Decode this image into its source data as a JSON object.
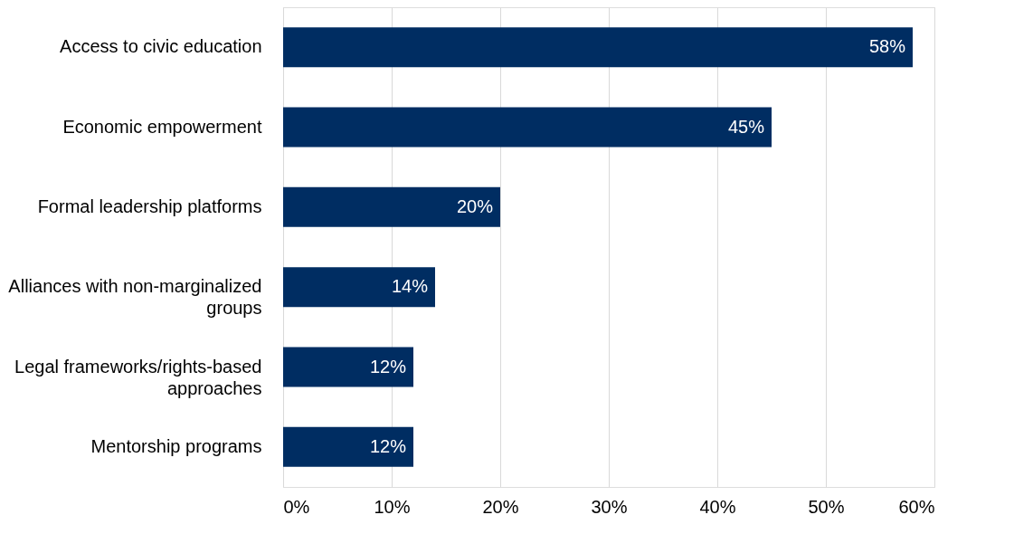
{
  "chart_data": {
    "type": "bar",
    "orientation": "horizontal",
    "categories": [
      "Access to civic education",
      "Economic empowerment",
      "Formal leadership platforms",
      "Alliances with non-marginalized groups",
      "Legal frameworks/rights-based approaches",
      "Mentorship programs"
    ],
    "values": [
      58,
      45,
      20,
      14,
      12,
      12
    ],
    "value_labels": [
      "58%",
      "45%",
      "20%",
      "14%",
      "12%",
      "12%"
    ],
    "color": "#002d62",
    "xlim": [
      0,
      60
    ],
    "xticks": [
      {
        "value": 0,
        "label": "0%"
      },
      {
        "value": 10,
        "label": "10%"
      },
      {
        "value": 20,
        "label": "20%"
      },
      {
        "value": 30,
        "label": "30%"
      },
      {
        "value": 40,
        "label": "40%"
      },
      {
        "value": 50,
        "label": "50%"
      },
      {
        "value": 60,
        "label": "60%"
      }
    ],
    "grid": "x"
  }
}
